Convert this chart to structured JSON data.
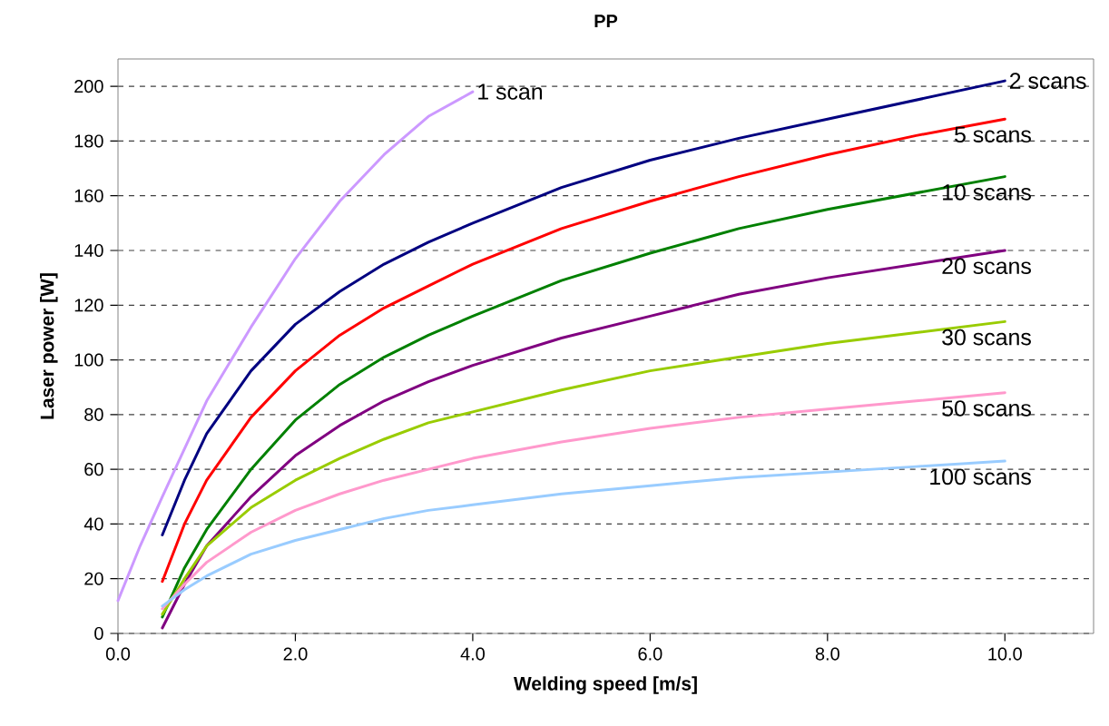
{
  "chart_data": {
    "type": "line",
    "title": "PP",
    "xlabel": "Welding speed [m/s]",
    "ylabel": "Laser power [W]",
    "xlim": [
      0,
      11
    ],
    "ylim": [
      0,
      210
    ],
    "xticks": [
      {
        "value": 0,
        "label": "0.0"
      },
      {
        "value": 2,
        "label": "2.0"
      },
      {
        "value": 4,
        "label": "4.0"
      },
      {
        "value": 6,
        "label": "6.0"
      },
      {
        "value": 8,
        "label": "8.0"
      },
      {
        "value": 10,
        "label": "10.0"
      }
    ],
    "yticks": [
      0,
      20,
      40,
      60,
      80,
      100,
      120,
      140,
      160,
      180,
      200
    ],
    "grid": "y",
    "marker": "none",
    "line_style": "solid",
    "series": [
      {
        "name": "1 scan",
        "color": "#cc99ff",
        "x": [
          0,
          0.25,
          0.5,
          1,
          1.5,
          2,
          2.5,
          3,
          3.5,
          4
        ],
        "values": [
          12,
          32,
          50,
          85,
          112,
          137,
          158,
          175,
          189,
          198
        ]
      },
      {
        "name": "2 scans",
        "color": "#000080",
        "x": [
          0.5,
          0.75,
          1,
          1.5,
          2,
          2.5,
          3,
          3.5,
          4,
          5,
          6,
          7,
          8,
          9,
          10
        ],
        "values": [
          36,
          56,
          73,
          96,
          113,
          125,
          135,
          143,
          150,
          163,
          173,
          181,
          188,
          195,
          202
        ]
      },
      {
        "name": "5 scans",
        "color": "#ff0000",
        "x": [
          0.5,
          0.75,
          1,
          1.5,
          2,
          2.5,
          3,
          3.5,
          4,
          5,
          6,
          7,
          8,
          9,
          10
        ],
        "values": [
          19,
          40,
          56,
          79,
          96,
          109,
          119,
          127,
          135,
          148,
          158,
          167,
          175,
          182,
          188
        ]
      },
      {
        "name": "10 scans",
        "color": "#008000",
        "x": [
          0.5,
          0.75,
          1,
          1.5,
          2,
          2.5,
          3,
          3.5,
          4,
          5,
          6,
          7,
          8,
          9,
          10
        ],
        "values": [
          6,
          24,
          38,
          60,
          78,
          91,
          101,
          109,
          116,
          129,
          139,
          148,
          155,
          161,
          167
        ]
      },
      {
        "name": "20 scans",
        "color": "#800080",
        "x": [
          0.5,
          0.75,
          1,
          1.5,
          2,
          2.5,
          3,
          3.5,
          4,
          5,
          6,
          7,
          8,
          9,
          10
        ],
        "values": [
          2,
          18,
          32,
          50,
          65,
          76,
          85,
          92,
          98,
          108,
          116,
          124,
          130,
          135,
          140
        ]
      },
      {
        "name": "30 scans",
        "color": "#99cc00",
        "x": [
          0.5,
          0.75,
          1,
          1.5,
          2,
          2.5,
          3,
          3.5,
          4,
          5,
          6,
          7,
          8,
          9,
          10
        ],
        "values": [
          7,
          20,
          32,
          46,
          56,
          64,
          71,
          77,
          81,
          89,
          96,
          101,
          106,
          110,
          114
        ]
      },
      {
        "name": "50 scans",
        "color": "#ff99cc",
        "x": [
          0.5,
          0.75,
          1,
          1.5,
          2,
          2.5,
          3,
          3.5,
          4,
          5,
          6,
          7,
          8,
          9,
          10
        ],
        "values": [
          9,
          18,
          26,
          37,
          45,
          51,
          56,
          60,
          64,
          70,
          75,
          79,
          82,
          85,
          88
        ]
      },
      {
        "name": "100 scans",
        "color": "#99ccff",
        "x": [
          0.5,
          0.75,
          1,
          1.5,
          2,
          2.5,
          3,
          3.5,
          4,
          5,
          6,
          7,
          8,
          9,
          10
        ],
        "values": [
          10,
          16,
          21,
          29,
          34,
          38,
          42,
          45,
          47,
          51,
          54,
          57,
          59,
          61,
          63
        ]
      }
    ]
  }
}
